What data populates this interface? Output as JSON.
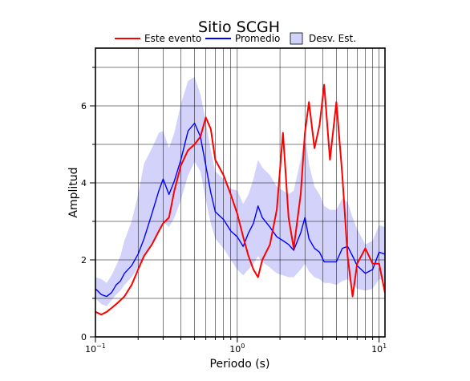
{
  "chart_data": {
    "type": "line",
    "title": "Sitio SCGH",
    "xlabel": "Periodo (s)",
    "ylabel": "Amplitud",
    "x_scale": "log",
    "xlim": [
      0.1,
      11
    ],
    "ylim": [
      0,
      7.5
    ],
    "x_ticks": [
      {
        "value": 0.1,
        "base": "10",
        "exp": "−1"
      },
      {
        "value": 1,
        "base": "10",
        "exp": "0"
      },
      {
        "value": 10,
        "base": "10",
        "exp": "1"
      }
    ],
    "y_ticks": [
      {
        "value": 0,
        "label": "0"
      },
      {
        "value": 2,
        "label": "2"
      },
      {
        "value": 4,
        "label": "4"
      },
      {
        "value": 6,
        "label": "6"
      }
    ],
    "grid": true,
    "legend_position": "top",
    "legend": [
      {
        "label": "Este evento",
        "kind": "line",
        "color": "#ff0000"
      },
      {
        "label": "Promedio",
        "kind": "line",
        "color": "#0000ff"
      },
      {
        "label": "Desv. Est.",
        "kind": "band",
        "color": "#d2d2fa"
      }
    ],
    "x": [
      0.1,
      0.11,
      0.12,
      0.13,
      0.14,
      0.15,
      0.16,
      0.18,
      0.2,
      0.22,
      0.25,
      0.28,
      0.3,
      0.33,
      0.36,
      0.4,
      0.45,
      0.5,
      0.55,
      0.6,
      0.65,
      0.7,
      0.8,
      0.9,
      1.0,
      1.1,
      1.2,
      1.3,
      1.4,
      1.5,
      1.7,
      1.9,
      2.1,
      2.3,
      2.5,
      2.8,
      3.0,
      3.2,
      3.5,
      3.8,
      4.1,
      4.5,
      5.0,
      5.5,
      6.0,
      6.5,
      7.0,
      8.0,
      9.0,
      10.0,
      11.0
    ],
    "series": [
      {
        "name": "Este evento",
        "color": "#ff0000",
        "values": [
          0.65,
          0.58,
          0.65,
          0.75,
          0.85,
          0.95,
          1.05,
          1.35,
          1.75,
          2.1,
          2.4,
          2.75,
          2.95,
          3.1,
          3.8,
          4.45,
          4.85,
          5.0,
          5.2,
          5.7,
          5.4,
          4.6,
          4.2,
          3.7,
          3.2,
          2.6,
          2.1,
          1.75,
          1.55,
          2.0,
          2.4,
          3.3,
          5.3,
          3.1,
          2.3,
          3.7,
          5.3,
          6.1,
          4.9,
          5.5,
          6.55,
          4.6,
          6.1,
          4.2,
          2.1,
          1.05,
          1.9,
          2.3,
          1.9,
          1.9,
          1.15
        ]
      },
      {
        "name": "Promedio",
        "color": "#0000ff",
        "values": [
          1.25,
          1.1,
          1.05,
          1.15,
          1.35,
          1.45,
          1.65,
          1.85,
          2.15,
          2.55,
          3.2,
          3.8,
          4.1,
          3.7,
          4.05,
          4.6,
          5.35,
          5.55,
          5.2,
          4.45,
          3.75,
          3.25,
          3.05,
          2.75,
          2.6,
          2.35,
          2.7,
          2.95,
          3.4,
          3.1,
          2.85,
          2.6,
          2.5,
          2.4,
          2.25,
          2.7,
          3.1,
          2.55,
          2.3,
          2.2,
          1.95,
          1.95,
          1.95,
          2.3,
          2.35,
          2.1,
          1.85,
          1.65,
          1.75,
          2.2,
          2.15
        ]
      }
    ],
    "band": {
      "name": "Desv. Est.",
      "color": "#d2d2fa",
      "lower": [
        1.0,
        0.85,
        0.8,
        0.95,
        1.1,
        1.2,
        1.35,
        1.55,
        1.8,
        2.05,
        2.45,
        2.75,
        3.0,
        2.85,
        3.1,
        3.55,
        4.2,
        4.55,
        4.3,
        3.55,
        2.95,
        2.55,
        2.3,
        2.0,
        1.75,
        1.6,
        1.75,
        1.9,
        2.1,
        1.95,
        1.8,
        1.65,
        1.6,
        1.55,
        1.55,
        1.75,
        1.9,
        1.7,
        1.55,
        1.5,
        1.4,
        1.4,
        1.35,
        1.45,
        1.5,
        1.35,
        1.25,
        1.2,
        1.25,
        1.5,
        1.45
      ],
      "upper": [
        1.55,
        1.5,
        1.4,
        1.6,
        1.85,
        2.1,
        2.5,
        3.0,
        3.7,
        4.5,
        4.9,
        5.3,
        5.35,
        4.9,
        5.3,
        6.05,
        6.65,
        6.75,
        6.3,
        5.6,
        4.85,
        4.3,
        4.1,
        3.85,
        3.8,
        3.45,
        3.7,
        4.1,
        4.6,
        4.4,
        4.2,
        3.9,
        3.8,
        3.7,
        3.8,
        4.6,
        5.3,
        4.5,
        3.9,
        3.7,
        3.4,
        3.3,
        3.3,
        3.6,
        3.5,
        3.1,
        2.8,
        2.4,
        2.5,
        2.9,
        2.85
      ]
    }
  }
}
